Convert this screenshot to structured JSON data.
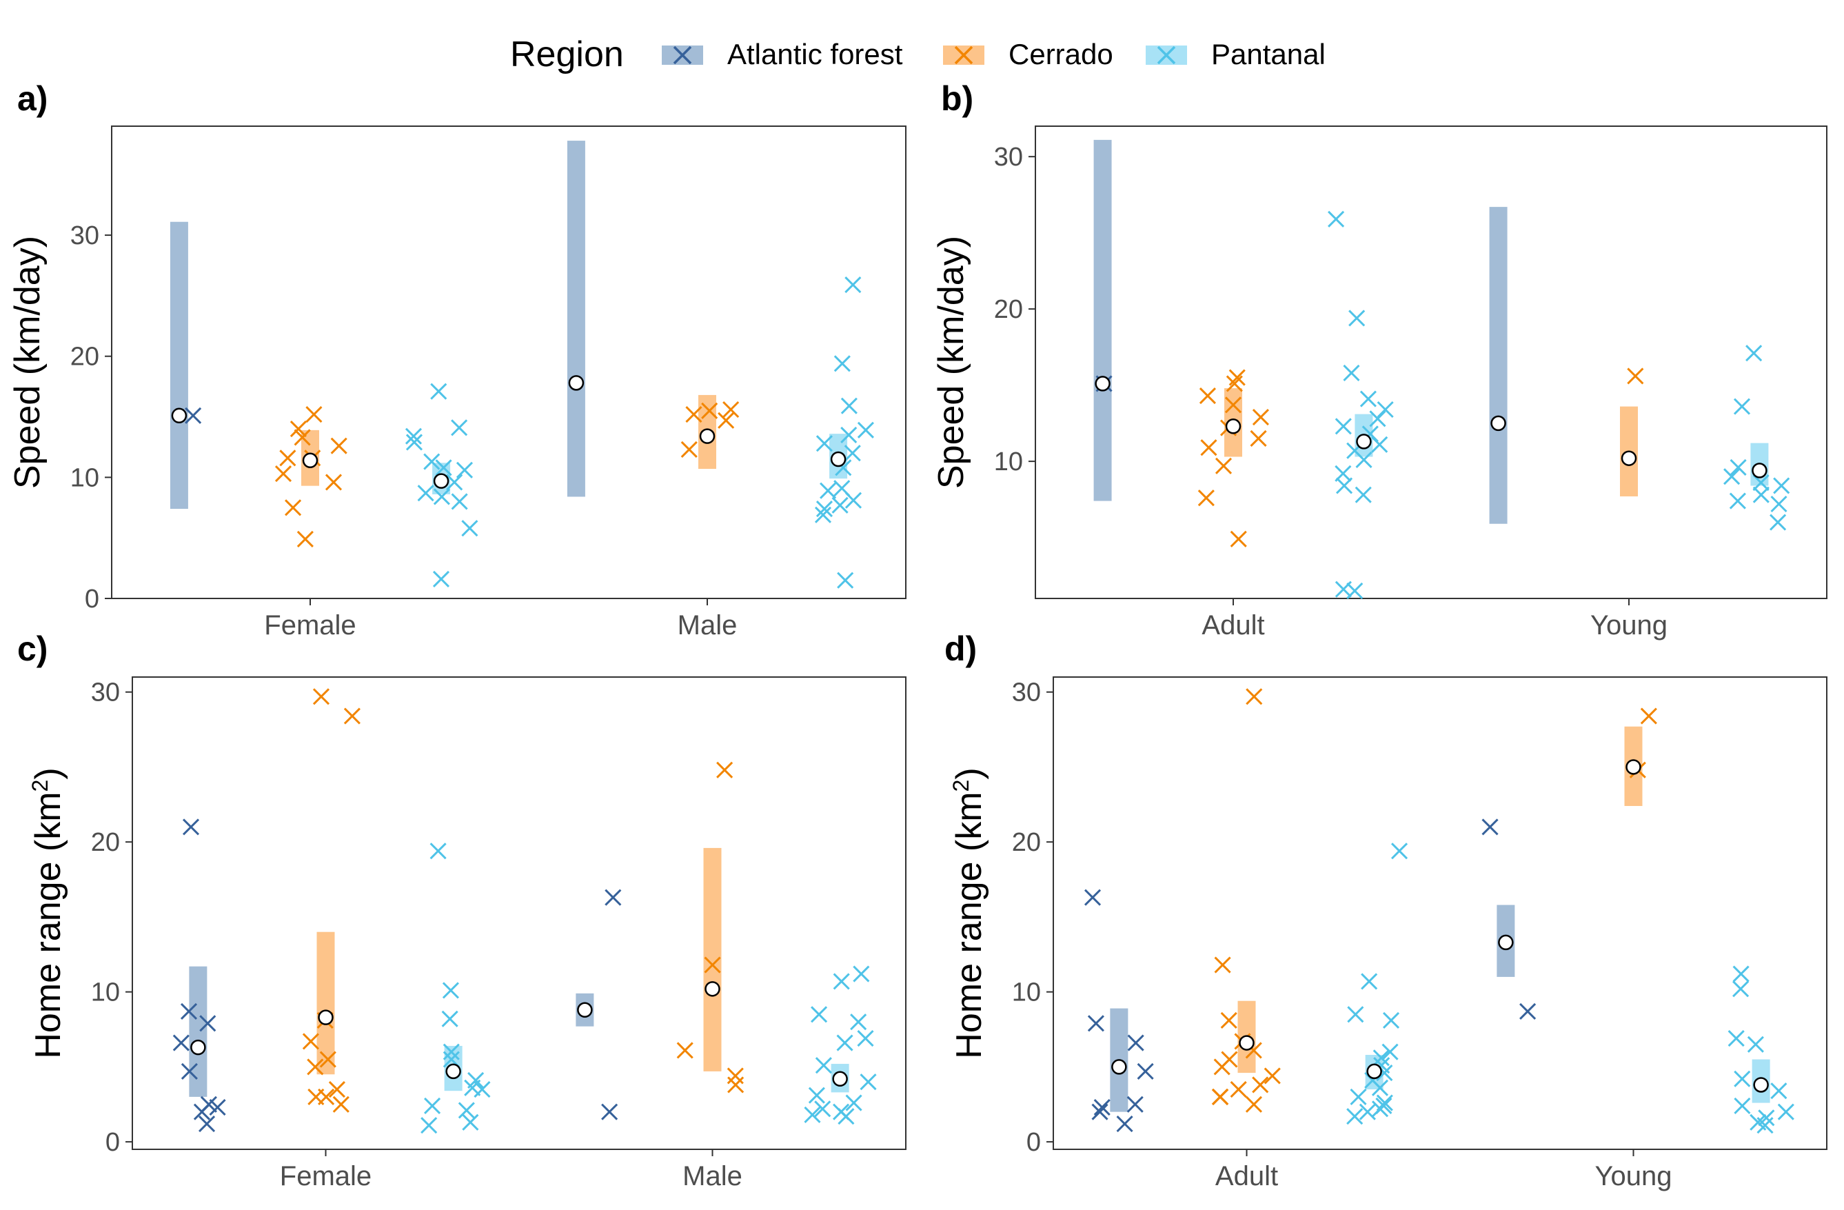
{
  "legend": {
    "title": "Region",
    "items": [
      {
        "name": "Atlantic forest",
        "point_color": "#36619A",
        "band_color": "#A3BCD6"
      },
      {
        "name": "Cerrado",
        "point_color": "#F28500",
        "band_color": "#FDC48A"
      },
      {
        "name": "Pantanal",
        "point_color": "#4FC3E8",
        "band_color": "#A8E2F6"
      }
    ]
  },
  "mean_marker": "open-circle",
  "chart_data": [
    {
      "panel": "a)",
      "type": "scatter",
      "ylabel": "Speed (km/day)",
      "ylim": [
        0,
        39
      ],
      "yticks": [
        0,
        10,
        20,
        30
      ],
      "categories": [
        "Female",
        "Male"
      ],
      "groups": [
        {
          "category": "Female",
          "region": "Atlantic forest",
          "mean": 15.1,
          "interval": [
            7.4,
            31.1
          ],
          "points": [
            15.1
          ]
        },
        {
          "category": "Female",
          "region": "Cerrado",
          "mean": 11.4,
          "interval": [
            9.3,
            13.9
          ],
          "points": [
            15.2,
            13.3,
            14.0,
            11.6,
            11.6,
            10.3,
            9.6,
            7.5,
            4.9,
            12.6
          ]
        },
        {
          "category": "Female",
          "region": "Pantanal",
          "mean": 9.7,
          "interval": [
            8.6,
            11.2
          ],
          "points": [
            17.1,
            11.3,
            10.6,
            12.9,
            14.1,
            13.4,
            10.8,
            8.7,
            8.4,
            8.0,
            9.6,
            5.8,
            1.6
          ]
        },
        {
          "category": "Male",
          "region": "Atlantic forest",
          "mean": 17.8,
          "interval": [
            8.4,
            37.8
          ],
          "points": []
        },
        {
          "category": "Male",
          "region": "Cerrado",
          "mean": 13.4,
          "interval": [
            10.7,
            16.8
          ],
          "points": [
            14.7,
            15.5,
            15.6,
            15.2,
            12.3
          ]
        },
        {
          "category": "Male",
          "region": "Pantanal",
          "mean": 11.5,
          "interval": [
            9.9,
            13.6
          ],
          "points": [
            25.9,
            19.4,
            15.9,
            13.9,
            13.5,
            12.8,
            12.0,
            10.8,
            8.9,
            8.1,
            7.7,
            7.4,
            6.9,
            9.1,
            1.5
          ]
        }
      ]
    },
    {
      "panel": "b)",
      "type": "scatter",
      "ylabel": "Speed (km/day)",
      "ylim": [
        1,
        32
      ],
      "yticks": [
        10,
        20,
        30
      ],
      "categories": [
        "Adult",
        "Young"
      ],
      "groups": [
        {
          "category": "Adult",
          "region": "Atlantic forest",
          "mean": 15.1,
          "interval": [
            7.4,
            31.1
          ],
          "points": [
            15.1
          ]
        },
        {
          "category": "Adult",
          "region": "Cerrado",
          "mean": 12.3,
          "interval": [
            10.3,
            14.8
          ],
          "points": [
            15.1,
            15.5,
            14.3,
            13.7,
            12.9,
            12.2,
            11.5,
            10.9,
            9.7,
            7.6,
            4.9
          ]
        },
        {
          "category": "Adult",
          "region": "Pantanal",
          "mean": 11.3,
          "interval": [
            10.3,
            13.1
          ],
          "points": [
            25.9,
            19.4,
            15.8,
            14.1,
            13.4,
            12.8,
            12.3,
            11.8,
            11.1,
            10.7,
            10.1,
            9.2,
            8.4,
            7.8,
            1.6,
            1.5
          ]
        },
        {
          "category": "Young",
          "region": "Atlantic forest",
          "mean": 12.5,
          "interval": [
            5.9,
            26.7
          ],
          "points": []
        },
        {
          "category": "Young",
          "region": "Cerrado",
          "mean": 10.2,
          "interval": [
            7.7,
            13.6
          ],
          "points": [
            15.6
          ]
        },
        {
          "category": "Young",
          "region": "Pantanal",
          "mean": 9.4,
          "interval": [
            8.4,
            11.2
          ],
          "points": [
            17.1,
            13.6,
            9.6,
            9.0,
            8.6,
            8.4,
            7.8,
            7.4,
            7.2,
            6.0
          ]
        }
      ]
    },
    {
      "panel": "c)",
      "type": "scatter",
      "ylabel": "Home range (km",
      "ylabel_sup": "2",
      "ylabel_end": ")",
      "ylim": [
        -0.5,
        31
      ],
      "yticks": [
        0,
        10,
        20,
        30
      ],
      "categories": [
        "Female",
        "Male"
      ],
      "groups": [
        {
          "category": "Female",
          "region": "Atlantic forest",
          "mean": 6.3,
          "interval": [
            3.0,
            11.7
          ],
          "points": [
            8.7,
            7.9,
            6.6,
            4.7,
            2.5,
            2.3,
            2.0,
            1.2,
            21.0
          ]
        },
        {
          "category": "Female",
          "region": "Cerrado",
          "mean": 8.3,
          "interval": [
            4.5,
            14.0
          ],
          "points": [
            29.7,
            28.4,
            8.1,
            6.7,
            5.5,
            5.0,
            3.5,
            3.0,
            3.0,
            2.5
          ]
        },
        {
          "category": "Female",
          "region": "Pantanal",
          "mean": 4.7,
          "interval": [
            3.4,
            6.4
          ],
          "points": [
            19.4,
            10.1,
            8.2,
            6.0,
            5.5,
            4.1,
            3.6,
            3.5,
            2.4,
            2.1,
            1.3,
            1.1
          ]
        },
        {
          "category": "Male",
          "region": "Atlantic forest",
          "mean": 8.8,
          "interval": [
            7.7,
            9.9
          ],
          "points": [
            16.3,
            2.0
          ]
        },
        {
          "category": "Male",
          "region": "Cerrado",
          "mean": 10.2,
          "interval": [
            4.7,
            19.6
          ],
          "points": [
            24.8,
            11.8,
            6.1,
            4.4,
            3.8
          ]
        },
        {
          "category": "Male",
          "region": "Pantanal",
          "mean": 4.2,
          "interval": [
            3.3,
            5.2
          ],
          "points": [
            11.2,
            10.7,
            8.5,
            8.0,
            6.9,
            6.6,
            5.1,
            4.0,
            3.1,
            2.6,
            2.2,
            2.0,
            1.8,
            1.7
          ]
        }
      ]
    },
    {
      "panel": "d)",
      "type": "scatter",
      "ylabel": "Home range (km",
      "ylabel_sup": "2",
      "ylabel_end": ")",
      "ylim": [
        -0.5,
        31
      ],
      "yticks": [
        0,
        10,
        20,
        30
      ],
      "categories": [
        "Adult",
        "Young"
      ],
      "groups": [
        {
          "category": "Adult",
          "region": "Atlantic forest",
          "mean": 5.0,
          "interval": [
            2.0,
            8.9
          ],
          "points": [
            16.3,
            7.9,
            6.6,
            4.7,
            2.5,
            2.3,
            2.0,
            1.2
          ]
        },
        {
          "category": "Adult",
          "region": "Cerrado",
          "mean": 6.6,
          "interval": [
            4.6,
            9.4
          ],
          "points": [
            29.7,
            11.8,
            8.1,
            6.7,
            6.1,
            5.5,
            5.0,
            4.4,
            3.8,
            3.5,
            3.0,
            3.0,
            2.5
          ]
        },
        {
          "category": "Adult",
          "region": "Pantanal",
          "mean": 4.7,
          "interval": [
            3.5,
            5.8
          ],
          "points": [
            19.4,
            10.7,
            8.5,
            8.1,
            6.0,
            5.6,
            5.1,
            4.6,
            4.1,
            3.6,
            3.0,
            2.6,
            2.4,
            2.2,
            2.0,
            1.7
          ]
        },
        {
          "category": "Young",
          "region": "Atlantic forest",
          "mean": 13.3,
          "interval": [
            11.0,
            15.8
          ],
          "points": [
            21.0,
            8.7
          ]
        },
        {
          "category": "Young",
          "region": "Cerrado",
          "mean": 25.0,
          "interval": [
            22.4,
            27.7
          ],
          "points": [
            28.4,
            24.8
          ]
        },
        {
          "category": "Young",
          "region": "Pantanal",
          "mean": 3.8,
          "interval": [
            2.6,
            5.5
          ],
          "points": [
            11.2,
            10.2,
            6.9,
            6.5,
            4.2,
            3.4,
            2.4,
            2.0,
            1.6,
            1.3,
            1.1
          ]
        }
      ]
    }
  ]
}
